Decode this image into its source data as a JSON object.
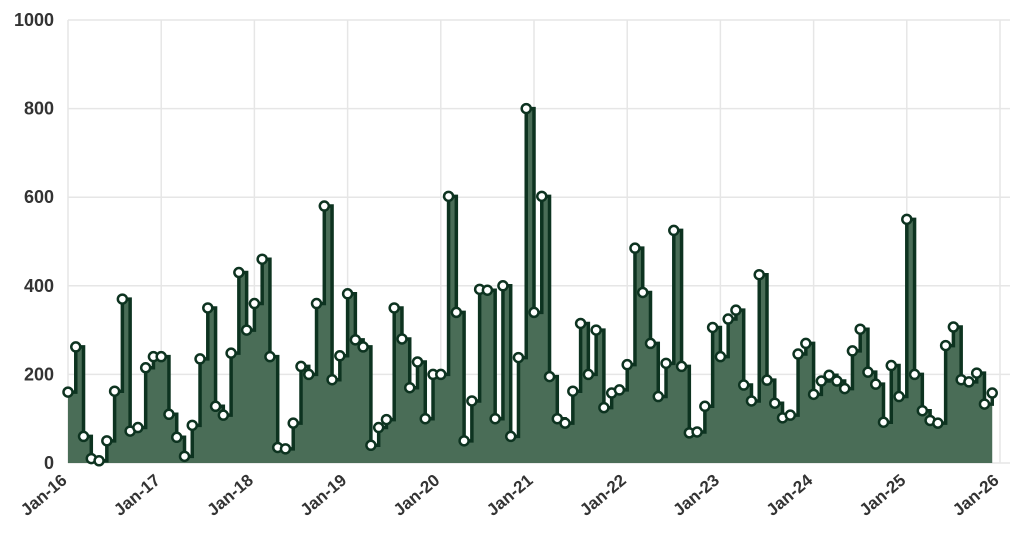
{
  "chart_data": {
    "type": "area",
    "title": "",
    "xlabel": "",
    "ylabel": "",
    "ylim": [
      0,
      1000
    ],
    "yticks": [
      0,
      200,
      400,
      600,
      800,
      1000
    ],
    "xticks": [
      {
        "label": "Jan-16",
        "month": 0
      },
      {
        "label": "Jan-17",
        "month": 12
      },
      {
        "label": "Jan-18",
        "month": 24
      },
      {
        "label": "Jan-19",
        "month": 36
      },
      {
        "label": "Jan-20",
        "month": 48
      },
      {
        "label": "Jan-21",
        "month": 60
      },
      {
        "label": "Jan-22",
        "month": 72
      },
      {
        "label": "Jan-23",
        "month": 84
      },
      {
        "label": "Jan-24",
        "month": 96
      },
      {
        "label": "Jan-25",
        "month": 108
      },
      {
        "label": "Jan-26",
        "month": 120
      }
    ],
    "grid": true,
    "colors": {
      "fill": "#4a6d57",
      "line": "#0d3320",
      "marker_fill": "#ffffff",
      "grid": "#e6e6e6",
      "tick_text": "#333333"
    },
    "x_start": "2016-01",
    "x_interval": "month",
    "values": [
      160,
      262,
      60,
      10,
      5,
      50,
      162,
      370,
      72,
      80,
      215,
      240,
      240,
      110,
      58,
      15,
      85,
      235,
      350,
      128,
      108,
      248,
      430,
      300,
      360,
      460,
      240,
      35,
      32,
      90,
      218,
      200,
      360,
      580,
      188,
      242,
      382,
      278,
      262,
      40,
      80,
      98,
      350,
      280,
      170,
      228,
      100,
      200,
      200,
      602,
      340,
      50,
      140,
      392,
      390,
      100,
      400,
      60,
      238,
      800,
      340,
      602,
      195,
      100,
      90,
      162,
      315,
      200,
      300,
      125,
      158,
      165,
      222,
      485,
      385,
      270,
      150,
      225,
      525,
      218,
      68,
      70,
      128,
      306,
      240,
      325,
      345,
      176,
      140,
      425,
      187,
      135,
      102,
      108,
      246,
      270,
      155,
      185,
      198,
      185,
      168,
      253,
      302,
      205,
      178,
      92,
      220,
      150,
      550,
      200,
      118,
      96,
      90,
      265,
      307,
      188,
      183,
      203,
      133,
      158
    ]
  }
}
